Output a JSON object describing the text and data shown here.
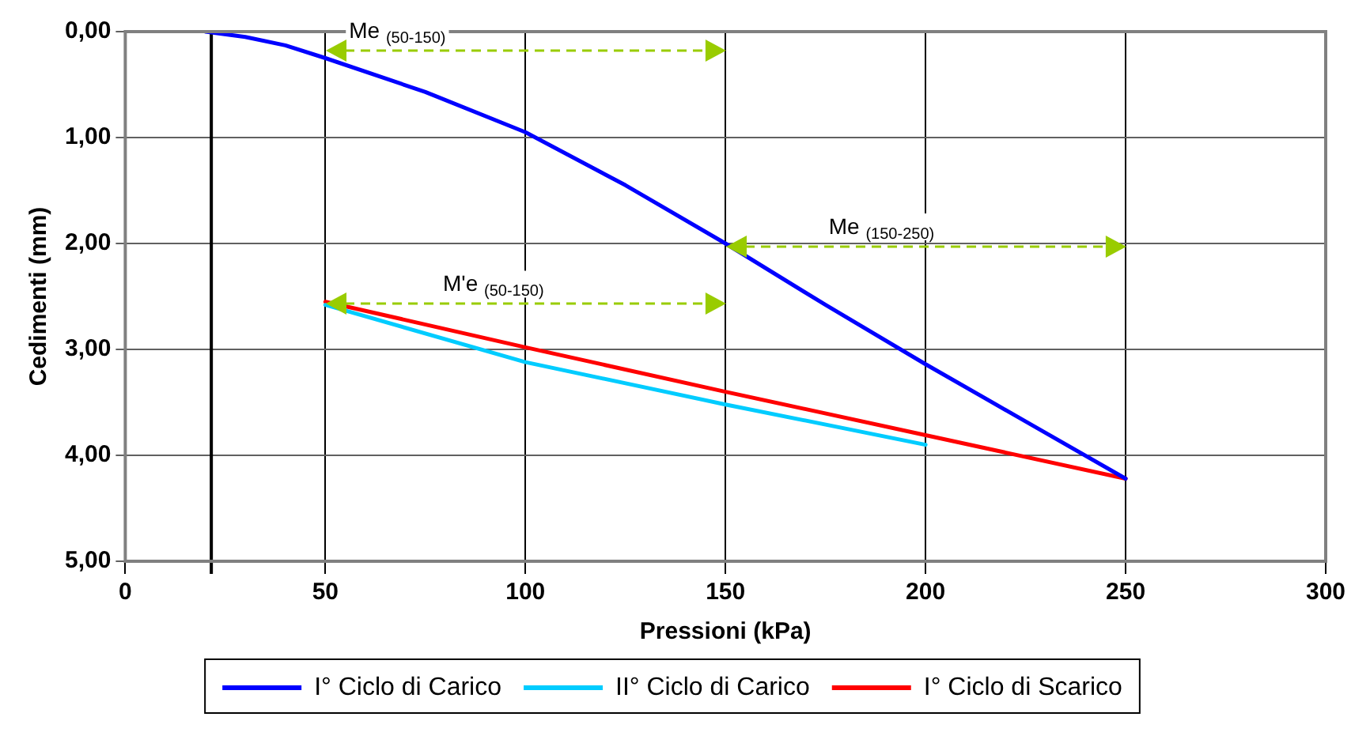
{
  "chart_data": {
    "type": "line",
    "xlabel": "Pressioni (kPa)",
    "ylabel": "Cedimenti (mm)",
    "xlim": [
      0,
      300
    ],
    "xticks": [
      0,
      50,
      100,
      150,
      200,
      250,
      300
    ],
    "ylim": [
      5,
      0
    ],
    "yticks": [
      {
        "value": 0,
        "label": "0,00"
      },
      {
        "value": 1,
        "label": "1,00"
      },
      {
        "value": 2,
        "label": "2,00"
      },
      {
        "value": 3,
        "label": "3,00"
      },
      {
        "value": 4,
        "label": "4,00"
      },
      {
        "value": 5,
        "label": "5,00"
      }
    ],
    "grid": true,
    "legend": "bottom",
    "marker": "none",
    "series": [
      {
        "name": "I° Ciclo di Carico",
        "color": "#0000ff",
        "x": [
          20,
          30,
          40,
          50,
          75,
          100,
          125,
          150,
          175,
          200,
          225,
          250
        ],
        "values": [
          0,
          0.05,
          0.13,
          0.25,
          0.57,
          0.95,
          1.45,
          2.0,
          2.58,
          3.14,
          3.68,
          4.22
        ]
      },
      {
        "name": "II° Ciclo di Carico",
        "color": "#00ccff",
        "x": [
          50,
          100,
          150,
          200
        ],
        "values": [
          2.58,
          3.12,
          3.52,
          3.9
        ]
      },
      {
        "name": "I° Ciclo di Scarico",
        "color": "#ff0000",
        "x": [
          50,
          100,
          150,
          200,
          250
        ],
        "values": [
          2.55,
          2.98,
          3.4,
          3.81,
          4.22
        ]
      }
    ],
    "ref_lines": [
      {
        "axis": "x",
        "value": 21.5,
        "color": "#000000"
      }
    ],
    "annotations": [
      "Me $_{(50-150)}$",
      "Me $_{(150-250)}$",
      "M'e $_{(50-150)}$"
    ]
  }
}
